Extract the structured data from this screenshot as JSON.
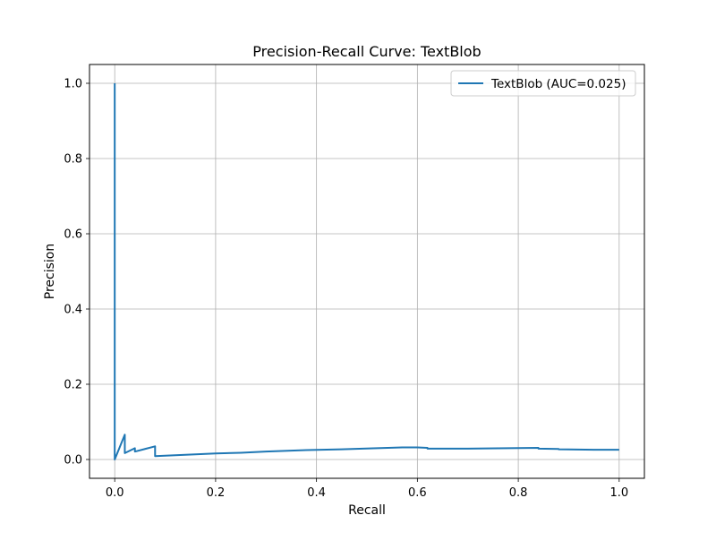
{
  "chart_data": {
    "type": "line",
    "title": "Precision-Recall Curve: TextBlob",
    "xlabel": "Recall",
    "ylabel": "Precision",
    "xlim": [
      -0.05,
      1.05
    ],
    "ylim": [
      -0.05,
      1.05
    ],
    "xticks": [
      0.0,
      0.2,
      0.4,
      0.6,
      0.8,
      1.0
    ],
    "xtick_labels": [
      "0.0",
      "0.2",
      "0.4",
      "0.6",
      "0.8",
      "1.0"
    ],
    "yticks": [
      0.0,
      0.2,
      0.4,
      0.6,
      0.8,
      1.0
    ],
    "ytick_labels": [
      "0.0",
      "0.2",
      "0.4",
      "0.6",
      "0.8",
      "1.0"
    ],
    "grid": true,
    "legend_position": "upper-right",
    "series": [
      {
        "name": "TextBlob (AUC=0.025)",
        "color": "#1f77b4",
        "x": [
          0.0,
          0.0,
          0.0,
          0.02,
          0.02,
          0.04,
          0.04,
          0.06,
          0.08,
          0.08,
          0.1,
          0.15,
          0.2,
          0.25,
          0.3,
          0.38,
          0.45,
          0.52,
          0.57,
          0.6,
          0.62,
          0.62,
          0.7,
          0.78,
          0.84,
          0.84,
          0.88,
          0.88,
          0.95,
          1.0
        ],
        "y": [
          1.0,
          0.0,
          0.0,
          0.066,
          0.017,
          0.03,
          0.021,
          0.028,
          0.035,
          0.009,
          0.01,
          0.013,
          0.016,
          0.018,
          0.021,
          0.025,
          0.027,
          0.03,
          0.032,
          0.032,
          0.031,
          0.029,
          0.029,
          0.03,
          0.031,
          0.029,
          0.028,
          0.027,
          0.026,
          0.026
        ]
      }
    ]
  }
}
